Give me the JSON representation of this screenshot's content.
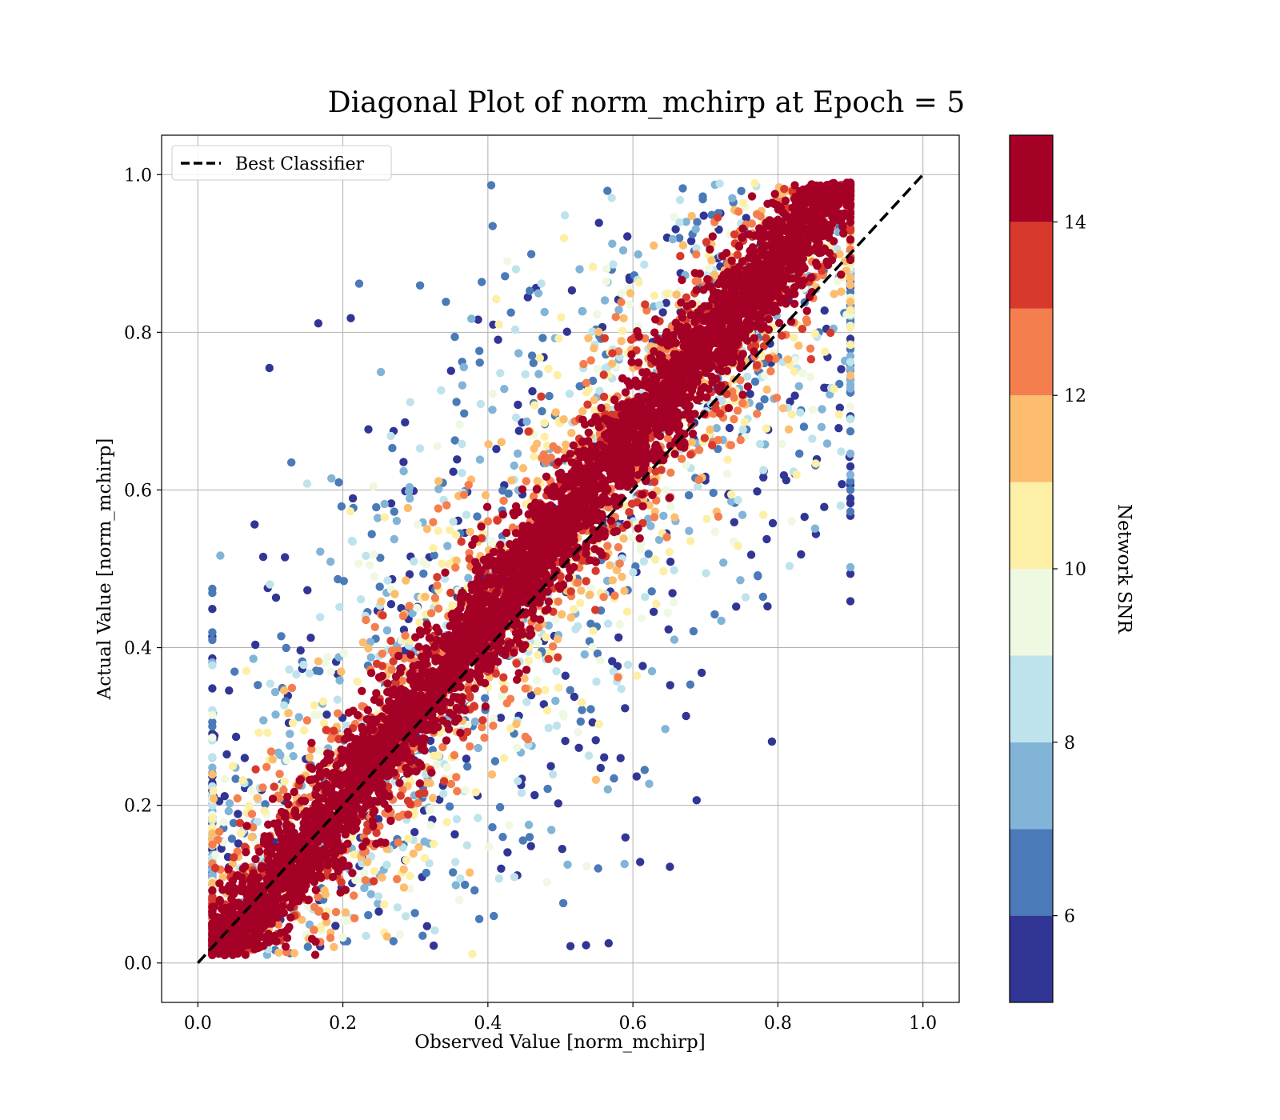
{
  "chart_data": {
    "type": "scatter",
    "title": "Diagonal Plot of norm_mchirp at Epoch = 5",
    "xlabel": "Observed Value [norm_mchirp]",
    "ylabel": "Actual Value [norm_mchirp]",
    "xlim": [
      -0.05,
      1.05
    ],
    "ylim": [
      -0.05,
      1.05
    ],
    "xticks": [
      0.0,
      0.2,
      0.4,
      0.6,
      0.8,
      1.0
    ],
    "yticks": [
      0.0,
      0.2,
      0.4,
      0.6,
      0.8,
      1.0
    ],
    "xtick_labels": [
      "0.0",
      "0.2",
      "0.4",
      "0.6",
      "0.8",
      "1.0"
    ],
    "ytick_labels": [
      "0.0",
      "0.2",
      "0.4",
      "0.6",
      "0.8",
      "1.0"
    ],
    "grid": true,
    "legend": {
      "placement": "top-left",
      "entries": [
        {
          "label": "Best Classifier",
          "style": "dashed",
          "color": "#000000"
        }
      ]
    },
    "reference_line": {
      "name": "Best Classifier",
      "x": [
        0.0,
        1.0
      ],
      "y": [
        0.0,
        1.0
      ]
    },
    "colorbar": {
      "label": "Network SNR",
      "range": [
        5,
        15
      ],
      "ticks": [
        6,
        8,
        10,
        12,
        14
      ],
      "tick_labels": [
        "6",
        "8",
        "10",
        "12",
        "14"
      ],
      "bins": [
        {
          "from": 5,
          "to": 6,
          "color": "#313695"
        },
        {
          "from": 6,
          "to": 7,
          "color": "#4a7ab7"
        },
        {
          "from": 7,
          "to": 8,
          "color": "#81b4d7"
        },
        {
          "from": 8,
          "to": 9,
          "color": "#bfe3ec"
        },
        {
          "from": 9,
          "to": 10,
          "color": "#eff8e1"
        },
        {
          "from": 10,
          "to": 11,
          "color": "#fdefa5"
        },
        {
          "from": 11,
          "to": 12,
          "color": "#fcbd6e"
        },
        {
          "from": 12,
          "to": 13,
          "color": "#f57e4e"
        },
        {
          "from": 13,
          "to": 14,
          "color": "#d73a2c"
        },
        {
          "from": 14,
          "to": 15,
          "color": "#a50026"
        }
      ]
    },
    "point_cloud": {
      "observed_range": [
        0.02,
        0.9
      ],
      "actual_range": [
        0.0,
        1.0
      ],
      "description_of_trend": "high-SNR points cluster tightly along the diagonal; low-SNR points scatter widely above and below"
    }
  }
}
